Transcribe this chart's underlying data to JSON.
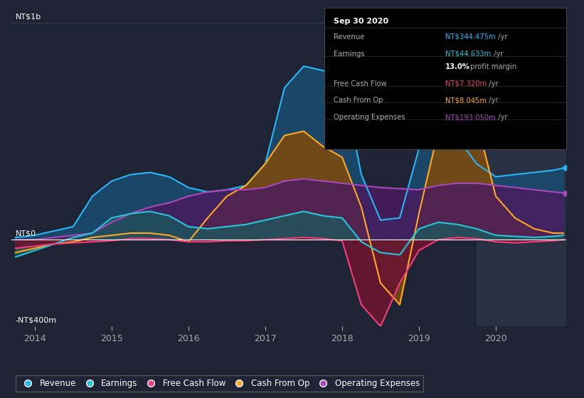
{
  "bg_color": "#1e2433",
  "plot_bg_color": "#1e2433",
  "highlight_bg_color": "#2a3347",
  "grid_color": "#3a4560",
  "zero_line_color": "#ffffff",
  "ylim": [
    -400,
    1050
  ],
  "xlim_start": 2013.7,
  "xlim_end": 2020.92,
  "yticks": [
    -400,
    0,
    1000
  ],
  "ytick_labels": [
    "-NT$400m",
    "NT$0",
    "NT$1b"
  ],
  "xticks": [
    2014,
    2015,
    2016,
    2017,
    2018,
    2019,
    2020
  ],
  "series": {
    "revenue": {
      "color": "#29b6f6",
      "fill_color": "#1a4a6e",
      "label": "Revenue"
    },
    "earnings": {
      "color": "#26c6da",
      "fill_color": "#1a5a5e",
      "label": "Earnings"
    },
    "free_cash_flow": {
      "color": "#ec407a",
      "fill_color": "#6a1530",
      "label": "Free Cash Flow"
    },
    "cash_from_op": {
      "color": "#ffa726",
      "fill_color": "#7a4a10",
      "label": "Cash From Op"
    },
    "operating_expenses": {
      "color": "#ab47bc",
      "fill_color": "#4a1a5e",
      "label": "Operating Expenses"
    }
  },
  "time_points": [
    2013.75,
    2014.0,
    2014.25,
    2014.5,
    2014.75,
    2015.0,
    2015.25,
    2015.5,
    2015.75,
    2016.0,
    2016.25,
    2016.5,
    2016.75,
    2017.0,
    2017.25,
    2017.5,
    2017.75,
    2018.0,
    2018.25,
    2018.5,
    2018.75,
    2019.0,
    2019.25,
    2019.5,
    2019.75,
    2020.0,
    2020.25,
    2020.5,
    2020.75,
    2020.88
  ],
  "revenue": [
    10,
    20,
    40,
    60,
    200,
    270,
    300,
    310,
    290,
    240,
    220,
    230,
    250,
    350,
    700,
    800,
    780,
    750,
    300,
    90,
    100,
    420,
    500,
    470,
    350,
    290,
    300,
    310,
    320,
    330
  ],
  "earnings": [
    -80,
    -50,
    -20,
    10,
    30,
    100,
    120,
    130,
    110,
    60,
    50,
    60,
    70,
    90,
    110,
    130,
    110,
    100,
    -10,
    -60,
    -70,
    50,
    80,
    70,
    50,
    20,
    15,
    10,
    15,
    20
  ],
  "free_cash_flow": [
    -40,
    -30,
    -20,
    -15,
    -10,
    -5,
    5,
    5,
    0,
    -10,
    -10,
    -5,
    -5,
    0,
    5,
    10,
    5,
    -5,
    -300,
    -400,
    -200,
    -50,
    0,
    10,
    5,
    -10,
    -15,
    -10,
    -5,
    0
  ],
  "cash_from_op": [
    -60,
    -40,
    -20,
    -10,
    10,
    20,
    30,
    30,
    20,
    -10,
    100,
    200,
    250,
    350,
    480,
    500,
    430,
    380,
    150,
    -200,
    -300,
    120,
    500,
    580,
    550,
    200,
    100,
    50,
    30,
    30
  ],
  "operating_expenses": [
    0,
    0,
    10,
    20,
    30,
    80,
    120,
    150,
    170,
    200,
    220,
    230,
    230,
    240,
    270,
    280,
    270,
    260,
    250,
    240,
    235,
    230,
    250,
    260,
    260,
    250,
    240,
    230,
    220,
    215
  ],
  "highlight_start": 2019.75,
  "highlight_end": 2020.92,
  "infobox": {
    "title": "Sep 30 2020",
    "rows": [
      {
        "label": "Revenue",
        "value": "NT$344.475m",
        "unit": " /yr",
        "color": "#29b6f6",
        "bold": false
      },
      {
        "label": "Earnings",
        "value": "NT$44.633m",
        "unit": " /yr",
        "color": "#26c6da",
        "bold": false
      },
      {
        "label": "",
        "value": "13.0%",
        "unit": " profit margin",
        "color": "#ffffff",
        "bold": true
      },
      {
        "label": "Free Cash Flow",
        "value": "NT$7.320m",
        "unit": " /yr",
        "color": "#ec407a",
        "bold": false
      },
      {
        "label": "Cash From Op",
        "value": "NT$8.045m",
        "unit": " /yr",
        "color": "#ffa726",
        "bold": false
      },
      {
        "label": "Operating Expenses",
        "value": "NT$193.050m",
        "unit": " /yr",
        "color": "#ab47bc",
        "bold": false
      }
    ]
  }
}
